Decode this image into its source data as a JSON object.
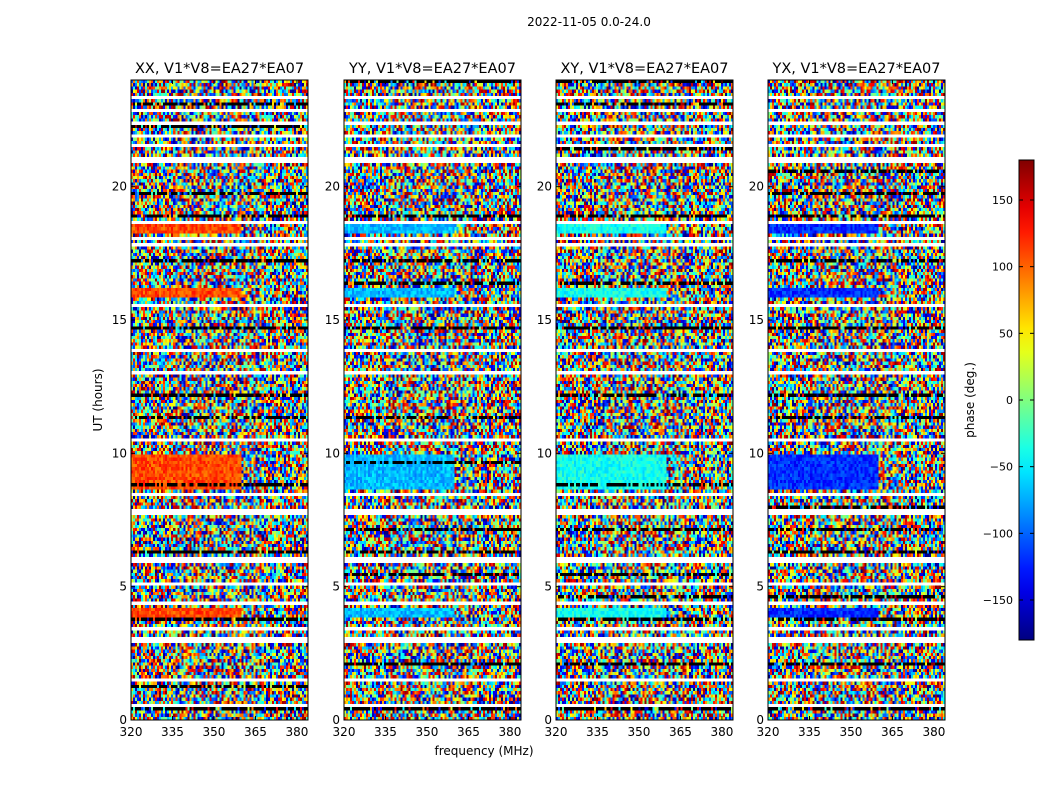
{
  "chart_data": {
    "type": "heatmap",
    "suptitle": "2022-11-05 0.0-24.0",
    "xlabel": "frequency (MHz)",
    "ylabel": "UT (hours)",
    "colorbar": {
      "label": "phase (deg.)",
      "range": [
        -180,
        180
      ],
      "ticks": [
        -150,
        -100,
        -50,
        0,
        50,
        100,
        150
      ],
      "colormap": "jet",
      "colors": [
        "#00008f",
        "#0000ff",
        "#00ffff",
        "#80ff80",
        "#ffff00",
        "#ff0000",
        "#800000"
      ]
    },
    "x_ticks": [
      320,
      335,
      350,
      365,
      380
    ],
    "xlim": [
      320,
      384
    ],
    "y_ticks": [
      0,
      5,
      10,
      15,
      20
    ],
    "ylim": [
      0,
      24
    ],
    "panels": [
      {
        "title": "XX, V1*V8=EA27*EA07",
        "bias_phase": 110
      },
      {
        "title": "YY, V1*V8=EA27*EA07",
        "bias_phase": -70
      },
      {
        "title": "XY, V1*V8=EA27*EA07",
        "bias_phase": -40
      },
      {
        "title": "YX, V1*V8=EA27*EA07",
        "bias_phase": -120
      }
    ],
    "flagged_gaps_ut": [
      0.5,
      1.5,
      3.0,
      3.4,
      4.4,
      5.1,
      6.0,
      7.8,
      8.5,
      10.5,
      13.0,
      13.9,
      15.5,
      17.8,
      18.1,
      18.6,
      20.9,
      21.0,
      21.5,
      21.9,
      22.4,
      22.8,
      23.3
    ],
    "coherent_bands_ut": [
      [
        3.8,
        4.2
      ],
      [
        8.6,
        9.9
      ],
      [
        15.8,
        16.2
      ],
      [
        18.2,
        18.6
      ]
    ]
  }
}
